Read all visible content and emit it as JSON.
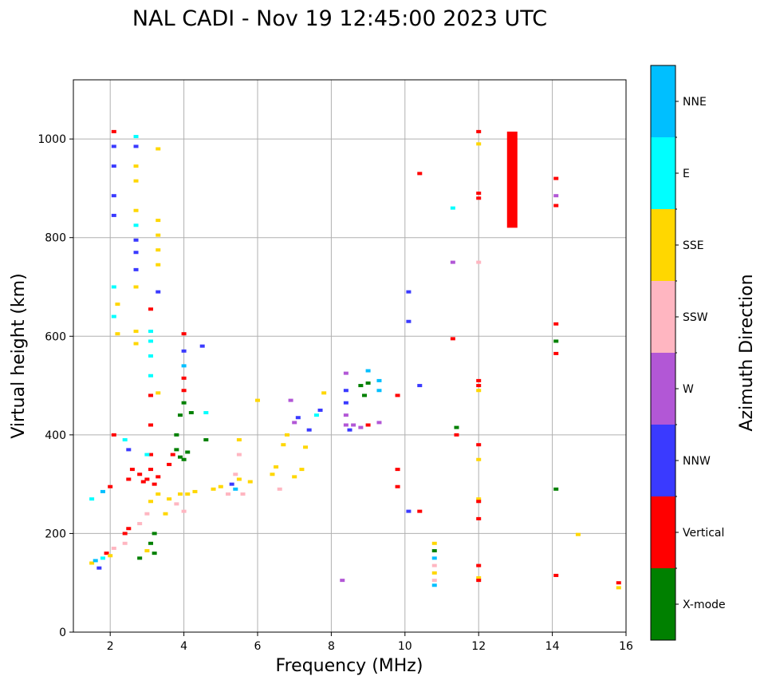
{
  "chart_data": {
    "type": "scatter",
    "title": "NAL CADI - Nov 19 12:45:00 2023 UTC",
    "xlabel": "Frequency (MHz)",
    "ylabel": "Virtual height (km)",
    "xlim": [
      1,
      16
    ],
    "ylim": [
      0,
      1120
    ],
    "xticks": [
      2,
      4,
      6,
      8,
      10,
      12,
      14,
      16
    ],
    "yticks": [
      0,
      200,
      400,
      600,
      800,
      1000
    ],
    "grid": true,
    "colorbar": {
      "label": "Azimuth Direction",
      "categories": [
        {
          "name": "X-mode",
          "color": "#008000"
        },
        {
          "name": "Vertical",
          "color": "#ff0000"
        },
        {
          "name": "NNW",
          "color": "#3a3aff"
        },
        {
          "name": "W",
          "color": "#b257d6"
        },
        {
          "name": "SSW",
          "color": "#ffb6c1"
        },
        {
          "name": "SSE",
          "color": "#ffd700"
        },
        {
          "name": "E",
          "color": "#00ffff"
        },
        {
          "name": "NNE",
          "color": "#00bfff"
        }
      ]
    },
    "points": [
      {
        "f": 1.5,
        "h": 140,
        "c": "SSE"
      },
      {
        "f": 1.6,
        "h": 145,
        "c": "NNE"
      },
      {
        "f": 1.7,
        "h": 130,
        "c": "NNW"
      },
      {
        "f": 1.8,
        "h": 150,
        "c": "E"
      },
      {
        "f": 1.9,
        "h": 160,
        "c": "Vertical"
      },
      {
        "f": 2.0,
        "h": 155,
        "c": "SSE"
      },
      {
        "f": 2.1,
        "h": 170,
        "c": "SSW"
      },
      {
        "f": 1.5,
        "h": 270,
        "c": "E"
      },
      {
        "f": 1.8,
        "h": 285,
        "c": "NNE"
      },
      {
        "f": 2.0,
        "h": 295,
        "c": "Vertical"
      },
      {
        "f": 2.1,
        "h": 400,
        "c": "Vertical"
      },
      {
        "f": 2.1,
        "h": 1015,
        "c": "Vertical"
      },
      {
        "f": 2.1,
        "h": 985,
        "c": "NNW"
      },
      {
        "f": 2.1,
        "h": 945,
        "c": "NNW"
      },
      {
        "f": 2.1,
        "h": 885,
        "c": "NNW"
      },
      {
        "f": 2.1,
        "h": 845,
        "c": "NNW"
      },
      {
        "f": 2.1,
        "h": 700,
        "c": "E"
      },
      {
        "f": 2.1,
        "h": 640,
        "c": "E"
      },
      {
        "f": 2.2,
        "h": 665,
        "c": "SSE"
      },
      {
        "f": 2.2,
        "h": 605,
        "c": "SSE"
      },
      {
        "f": 2.4,
        "h": 200,
        "c": "Vertical"
      },
      {
        "f": 2.5,
        "h": 210,
        "c": "Vertical"
      },
      {
        "f": 2.4,
        "h": 180,
        "c": "SSW"
      },
      {
        "f": 2.5,
        "h": 310,
        "c": "Vertical"
      },
      {
        "f": 2.6,
        "h": 330,
        "c": "Vertical"
      },
      {
        "f": 2.5,
        "h": 370,
        "c": "NNW"
      },
      {
        "f": 2.4,
        "h": 390,
        "c": "E"
      },
      {
        "f": 2.7,
        "h": 1005,
        "c": "E"
      },
      {
        "f": 2.7,
        "h": 985,
        "c": "NNW"
      },
      {
        "f": 2.7,
        "h": 945,
        "c": "SSE"
      },
      {
        "f": 2.7,
        "h": 915,
        "c": "SSE"
      },
      {
        "f": 2.7,
        "h": 855,
        "c": "SSE"
      },
      {
        "f": 2.7,
        "h": 825,
        "c": "E"
      },
      {
        "f": 2.7,
        "h": 795,
        "c": "NNW"
      },
      {
        "f": 2.7,
        "h": 770,
        "c": "NNW"
      },
      {
        "f": 2.7,
        "h": 735,
        "c": "NNW"
      },
      {
        "f": 2.7,
        "h": 700,
        "c": "SSE"
      },
      {
        "f": 2.7,
        "h": 610,
        "c": "SSE"
      },
      {
        "f": 2.7,
        "h": 585,
        "c": "SSE"
      },
      {
        "f": 2.8,
        "h": 320,
        "c": "Vertical"
      },
      {
        "f": 2.9,
        "h": 305,
        "c": "Vertical"
      },
      {
        "f": 3.0,
        "h": 310,
        "c": "Vertical"
      },
      {
        "f": 3.1,
        "h": 330,
        "c": "Vertical"
      },
      {
        "f": 3.1,
        "h": 360,
        "c": "Vertical"
      },
      {
        "f": 3.1,
        "h": 420,
        "c": "Vertical"
      },
      {
        "f": 3.1,
        "h": 480,
        "c": "Vertical"
      },
      {
        "f": 3.1,
        "h": 655,
        "c": "Vertical"
      },
      {
        "f": 3.1,
        "h": 610,
        "c": "E"
      },
      {
        "f": 3.1,
        "h": 590,
        "c": "E"
      },
      {
        "f": 3.1,
        "h": 560,
        "c": "E"
      },
      {
        "f": 3.1,
        "h": 520,
        "c": "E"
      },
      {
        "f": 3.0,
        "h": 360,
        "c": "E"
      },
      {
        "f": 3.2,
        "h": 300,
        "c": "Vertical"
      },
      {
        "f": 3.3,
        "h": 315,
        "c": "Vertical"
      },
      {
        "f": 3.2,
        "h": 160,
        "c": "X-mode"
      },
      {
        "f": 3.1,
        "h": 180,
        "c": "X-mode"
      },
      {
        "f": 3.2,
        "h": 200,
        "c": "X-mode"
      },
      {
        "f": 3.0,
        "h": 165,
        "c": "SSE"
      },
      {
        "f": 2.8,
        "h": 150,
        "c": "X-mode"
      },
      {
        "f": 2.8,
        "h": 220,
        "c": "SSW"
      },
      {
        "f": 3.0,
        "h": 240,
        "c": "SSW"
      },
      {
        "f": 3.1,
        "h": 265,
        "c": "SSE"
      },
      {
        "f": 3.3,
        "h": 280,
        "c": "SSE"
      },
      {
        "f": 3.3,
        "h": 980,
        "c": "SSE"
      },
      {
        "f": 3.3,
        "h": 835,
        "c": "SSE"
      },
      {
        "f": 3.3,
        "h": 805,
        "c": "SSE"
      },
      {
        "f": 3.3,
        "h": 775,
        "c": "SSE"
      },
      {
        "f": 3.3,
        "h": 745,
        "c": "SSE"
      },
      {
        "f": 3.3,
        "h": 690,
        "c": "NNW"
      },
      {
        "f": 3.3,
        "h": 485,
        "c": "SSE"
      },
      {
        "f": 3.5,
        "h": 240,
        "c": "SSE"
      },
      {
        "f": 3.6,
        "h": 270,
        "c": "SSE"
      },
      {
        "f": 3.6,
        "h": 340,
        "c": "Vertical"
      },
      {
        "f": 3.7,
        "h": 360,
        "c": "Vertical"
      },
      {
        "f": 3.8,
        "h": 370,
        "c": "X-mode"
      },
      {
        "f": 3.9,
        "h": 355,
        "c": "X-mode"
      },
      {
        "f": 4.0,
        "h": 350,
        "c": "X-mode"
      },
      {
        "f": 4.1,
        "h": 365,
        "c": "X-mode"
      },
      {
        "f": 3.8,
        "h": 400,
        "c": "X-mode"
      },
      {
        "f": 3.9,
        "h": 440,
        "c": "X-mode"
      },
      {
        "f": 4.0,
        "h": 570,
        "c": "NNW"
      },
      {
        "f": 4.0,
        "h": 540,
        "c": "NNE"
      },
      {
        "f": 4.0,
        "h": 515,
        "c": "Vertical"
      },
      {
        "f": 4.0,
        "h": 490,
        "c": "Vertical"
      },
      {
        "f": 4.0,
        "h": 465,
        "c": "X-mode"
      },
      {
        "f": 4.0,
        "h": 605,
        "c": "Vertical"
      },
      {
        "f": 3.8,
        "h": 260,
        "c": "SSW"
      },
      {
        "f": 4.0,
        "h": 245,
        "c": "SSW"
      },
      {
        "f": 4.1,
        "h": 280,
        "c": "SSE"
      },
      {
        "f": 4.3,
        "h": 285,
        "c": "SSE"
      },
      {
        "f": 3.9,
        "h": 280,
        "c": "SSE"
      },
      {
        "f": 4.2,
        "h": 445,
        "c": "X-mode"
      },
      {
        "f": 4.5,
        "h": 580,
        "c": "NNW"
      },
      {
        "f": 4.6,
        "h": 445,
        "c": "E"
      },
      {
        "f": 4.6,
        "h": 390,
        "c": "X-mode"
      },
      {
        "f": 4.8,
        "h": 290,
        "c": "SSE"
      },
      {
        "f": 5.0,
        "h": 295,
        "c": "SSE"
      },
      {
        "f": 5.2,
        "h": 280,
        "c": "SSW"
      },
      {
        "f": 5.3,
        "h": 300,
        "c": "NNW"
      },
      {
        "f": 5.4,
        "h": 320,
        "c": "SSW"
      },
      {
        "f": 5.4,
        "h": 290,
        "c": "NNE"
      },
      {
        "f": 5.5,
        "h": 310,
        "c": "SSE"
      },
      {
        "f": 5.5,
        "h": 360,
        "c": "SSW"
      },
      {
        "f": 5.5,
        "h": 390,
        "c": "SSE"
      },
      {
        "f": 5.6,
        "h": 280,
        "c": "SSW"
      },
      {
        "f": 5.8,
        "h": 305,
        "c": "SSE"
      },
      {
        "f": 6.0,
        "h": 470,
        "c": "SSE"
      },
      {
        "f": 6.4,
        "h": 320,
        "c": "SSE"
      },
      {
        "f": 6.5,
        "h": 335,
        "c": "SSE"
      },
      {
        "f": 6.6,
        "h": 290,
        "c": "SSW"
      },
      {
        "f": 6.7,
        "h": 380,
        "c": "SSE"
      },
      {
        "f": 6.8,
        "h": 400,
        "c": "SSE"
      },
      {
        "f": 6.9,
        "h": 470,
        "c": "W"
      },
      {
        "f": 7.0,
        "h": 425,
        "c": "W"
      },
      {
        "f": 7.1,
        "h": 435,
        "c": "NNW"
      },
      {
        "f": 7.0,
        "h": 315,
        "c": "SSE"
      },
      {
        "f": 7.2,
        "h": 330,
        "c": "SSE"
      },
      {
        "f": 7.3,
        "h": 375,
        "c": "SSE"
      },
      {
        "f": 7.4,
        "h": 410,
        "c": "NNW"
      },
      {
        "f": 7.6,
        "h": 440,
        "c": "E"
      },
      {
        "f": 7.7,
        "h": 450,
        "c": "NNW"
      },
      {
        "f": 7.8,
        "h": 485,
        "c": "SSE"
      },
      {
        "f": 8.3,
        "h": 105,
        "c": "W"
      },
      {
        "f": 8.4,
        "h": 525,
        "c": "W"
      },
      {
        "f": 8.4,
        "h": 490,
        "c": "NNW"
      },
      {
        "f": 8.4,
        "h": 465,
        "c": "NNW"
      },
      {
        "f": 8.4,
        "h": 440,
        "c": "W"
      },
      {
        "f": 8.4,
        "h": 420,
        "c": "W"
      },
      {
        "f": 8.5,
        "h": 410,
        "c": "NNW"
      },
      {
        "f": 8.6,
        "h": 420,
        "c": "W"
      },
      {
        "f": 8.8,
        "h": 500,
        "c": "X-mode"
      },
      {
        "f": 8.9,
        "h": 480,
        "c": "X-mode"
      },
      {
        "f": 8.8,
        "h": 415,
        "c": "W"
      },
      {
        "f": 9.0,
        "h": 530,
        "c": "NNE"
      },
      {
        "f": 9.0,
        "h": 505,
        "c": "X-mode"
      },
      {
        "f": 9.0,
        "h": 420,
        "c": "Vertical"
      },
      {
        "f": 9.3,
        "h": 510,
        "c": "NNE"
      },
      {
        "f": 9.3,
        "h": 490,
        "c": "NNE"
      },
      {
        "f": 9.3,
        "h": 425,
        "c": "W"
      },
      {
        "f": 9.8,
        "h": 480,
        "c": "Vertical"
      },
      {
        "f": 9.8,
        "h": 330,
        "c": "Vertical"
      },
      {
        "f": 9.8,
        "h": 295,
        "c": "Vertical"
      },
      {
        "f": 10.1,
        "h": 690,
        "c": "NNW"
      },
      {
        "f": 10.1,
        "h": 630,
        "c": "NNW"
      },
      {
        "f": 10.1,
        "h": 245,
        "c": "NNW"
      },
      {
        "f": 10.4,
        "h": 930,
        "c": "Vertical"
      },
      {
        "f": 10.4,
        "h": 500,
        "c": "NNW"
      },
      {
        "f": 10.4,
        "h": 245,
        "c": "Vertical"
      },
      {
        "f": 10.8,
        "h": 180,
        "c": "SSE"
      },
      {
        "f": 10.8,
        "h": 165,
        "c": "X-mode"
      },
      {
        "f": 10.8,
        "h": 150,
        "c": "NNE"
      },
      {
        "f": 10.8,
        "h": 135,
        "c": "SSW"
      },
      {
        "f": 10.8,
        "h": 120,
        "c": "SSE"
      },
      {
        "f": 10.8,
        "h": 105,
        "c": "SSW"
      },
      {
        "f": 10.8,
        "h": 95,
        "c": "NNE"
      },
      {
        "f": 11.3,
        "h": 860,
        "c": "E"
      },
      {
        "f": 11.3,
        "h": 750,
        "c": "W"
      },
      {
        "f": 11.3,
        "h": 595,
        "c": "Vertical"
      },
      {
        "f": 11.4,
        "h": 415,
        "c": "X-mode"
      },
      {
        "f": 11.4,
        "h": 400,
        "c": "Vertical"
      },
      {
        "f": 12.0,
        "h": 1015,
        "c": "Vertical"
      },
      {
        "f": 12.0,
        "h": 990,
        "c": "SSE"
      },
      {
        "f": 12.0,
        "h": 890,
        "c": "Vertical"
      },
      {
        "f": 12.0,
        "h": 880,
        "c": "Vertical"
      },
      {
        "f": 12.0,
        "h": 750,
        "c": "SSW"
      },
      {
        "f": 12.0,
        "h": 510,
        "c": "Vertical"
      },
      {
        "f": 12.0,
        "h": 500,
        "c": "Vertical"
      },
      {
        "f": 12.0,
        "h": 490,
        "c": "SSE"
      },
      {
        "f": 12.0,
        "h": 380,
        "c": "Vertical"
      },
      {
        "f": 12.0,
        "h": 350,
        "c": "SSE"
      },
      {
        "f": 12.0,
        "h": 270,
        "c": "SSE"
      },
      {
        "f": 12.0,
        "h": 265,
        "c": "Vertical"
      },
      {
        "f": 12.0,
        "h": 230,
        "c": "Vertical"
      },
      {
        "f": 12.0,
        "h": 135,
        "c": "Vertical"
      },
      {
        "f": 12.0,
        "h": 110,
        "c": "SSE"
      },
      {
        "f": 12.0,
        "h": 105,
        "c": "Vertical"
      },
      {
        "f": 14.1,
        "h": 920,
        "c": "Vertical"
      },
      {
        "f": 14.1,
        "h": 885,
        "c": "W"
      },
      {
        "f": 14.1,
        "h": 865,
        "c": "Vertical"
      },
      {
        "f": 14.1,
        "h": 625,
        "c": "Vertical"
      },
      {
        "f": 14.1,
        "h": 590,
        "c": "X-mode"
      },
      {
        "f": 14.1,
        "h": 565,
        "c": "Vertical"
      },
      {
        "f": 14.1,
        "h": 290,
        "c": "X-mode"
      },
      {
        "f": 14.1,
        "h": 115,
        "c": "Vertical"
      },
      {
        "f": 14.7,
        "h": 198,
        "c": "SSE"
      },
      {
        "f": 15.8,
        "h": 100,
        "c": "Vertical"
      },
      {
        "f": 15.8,
        "h": 90,
        "c": "SSE"
      }
    ],
    "bars": [
      {
        "f": 12.9,
        "h_from": 820,
        "h_to": 1015,
        "c": "Vertical"
      }
    ]
  }
}
